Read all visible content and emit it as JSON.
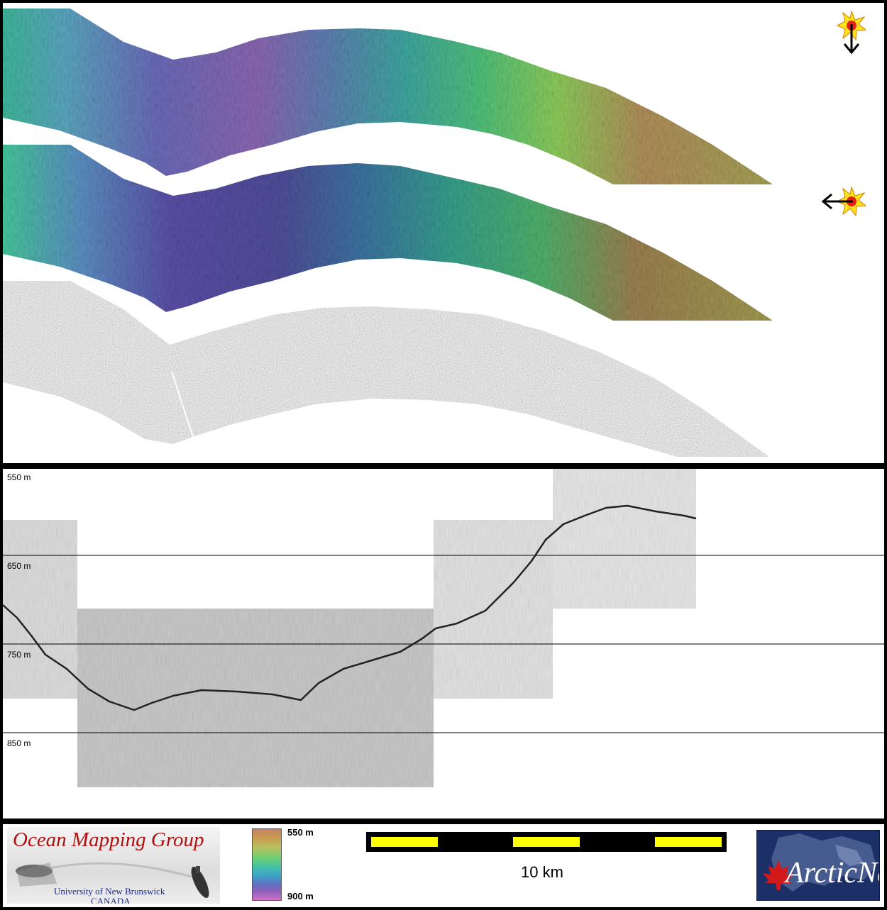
{
  "depth_labels": [
    "550 m",
    "650 m",
    "750 m",
    "850 m"
  ],
  "ocean_mapping_group": {
    "title": "Ocean Mapping Group",
    "line1": "University of New Brunswick",
    "line2": "CANADA"
  },
  "colorbar": {
    "top_label": "550 m",
    "bottom_label": "900 m"
  },
  "scale_bar": {
    "label": "10 km"
  },
  "arcticnet": {
    "name": "ArcticNet"
  },
  "illumination": [
    {
      "icon": "sun-icon",
      "direction": "north"
    },
    {
      "icon": "sun-icon",
      "direction": "east"
    }
  ],
  "colors": {
    "background": "#000000",
    "panel": "#ffffff",
    "scale_yellow": "#ffff00",
    "omg_red": "#b01010",
    "unb_blue": "#1a2c8c",
    "arcticnet_navy": "#1c2f66",
    "maple_red": "#d21a1a"
  }
}
